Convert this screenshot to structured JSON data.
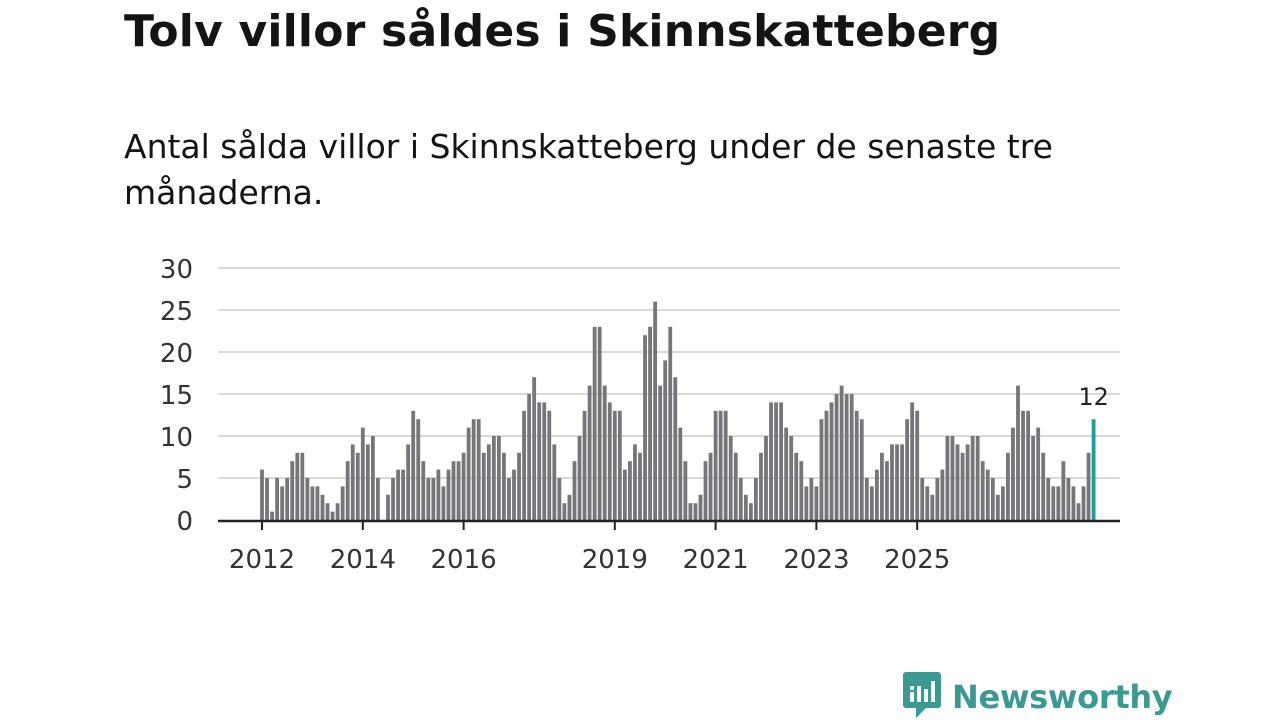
{
  "title": "Tolv villor såldes i Skinnskatteberg",
  "subtitle": "Antal sålda villor i Skinnskatteberg under de senaste tre månaderna.",
  "brand": {
    "name": "Newsworthy",
    "color": "#3a9a91",
    "icon": "newsworthy-logo-icon"
  },
  "colors": {
    "bar": "#76757a",
    "highlight": "#1a9e96",
    "grid": "#d9d9d9",
    "axis": "#222222"
  },
  "chart_data": {
    "type": "bar",
    "title": "Tolv villor såldes i Skinnskatteberg",
    "xlabel": "",
    "ylabel": "",
    "ylim": [
      0,
      30
    ],
    "yticks": [
      0,
      5,
      10,
      15,
      20,
      25,
      30
    ],
    "grid": true,
    "xtick_labels": [
      "2012",
      "2014",
      "2016",
      "2019",
      "2021",
      "2023",
      "2025"
    ],
    "xtick_index": [
      0,
      20,
      40,
      70,
      90,
      110,
      130
    ],
    "start_label": "2012",
    "highlight_label": "12",
    "values": [
      6,
      5,
      1,
      5,
      4,
      5,
      7,
      8,
      8,
      5,
      4,
      4,
      3,
      2,
      1,
      2,
      4,
      7,
      9,
      8,
      11,
      9,
      10,
      5,
      0,
      3,
      5,
      6,
      6,
      9,
      13,
      12,
      7,
      5,
      5,
      6,
      4,
      6,
      7,
      7,
      8,
      11,
      12,
      12,
      8,
      9,
      10,
      10,
      8,
      5,
      6,
      8,
      13,
      15,
      17,
      14,
      14,
      13,
      9,
      5,
      2,
      3,
      7,
      10,
      13,
      16,
      23,
      23,
      16,
      14,
      13,
      13,
      6,
      7,
      9,
      8,
      22,
      23,
      26,
      16,
      19,
      23,
      17,
      11,
      7,
      2,
      2,
      3,
      7,
      8,
      13,
      13,
      13,
      10,
      8,
      5,
      3,
      2,
      5,
      8,
      10,
      14,
      14,
      14,
      11,
      10,
      8,
      7,
      4,
      5,
      4,
      12,
      13,
      14,
      15,
      16,
      15,
      15,
      13,
      12,
      5,
      4,
      6,
      8,
      7,
      9,
      9,
      9,
      12,
      14,
      13,
      5,
      4,
      3,
      5,
      6,
      10,
      10,
      9,
      8,
      9,
      10,
      10,
      7,
      6,
      5,
      3,
      4,
      8,
      11,
      16,
      13,
      13,
      10,
      11,
      8,
      5,
      4,
      4,
      7,
      5,
      4,
      2,
      4,
      8,
      12
    ]
  }
}
